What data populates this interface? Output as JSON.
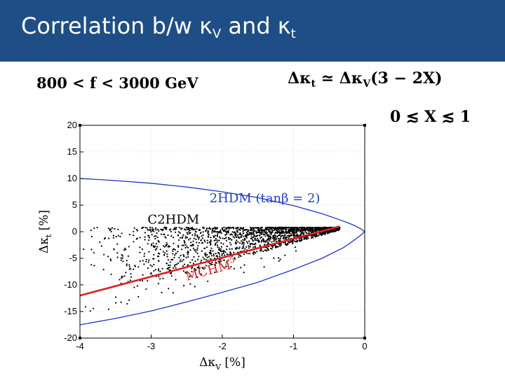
{
  "slide": {
    "title_main": "Correlation b/w κ",
    "title_sub_v": "V",
    "title_and": " and κ",
    "title_sub_t": "t"
  },
  "equations": {
    "range": "800 < f < 3000 GeV",
    "relation_lhs": "Δκ",
    "relation_lhs_sub": "t",
    "relation_mid": " ≃ Δκ",
    "relation_mid_sub": "V",
    "relation_rhs": "(3 − 2X)",
    "x_range": "0 ≲ X ≲ 1"
  },
  "chart_data": {
    "type": "scatter",
    "xlabel": "Δκ",
    "xlabel_sub": "V",
    "xlabel_unit": " [%]",
    "ylabel": "Δκ",
    "ylabel_sub": "t",
    "ylabel_unit": " [%]",
    "xlim": [
      -4,
      0
    ],
    "ylim": [
      -20,
      20
    ],
    "xticks": [
      -4,
      -3,
      -2,
      -1,
      0
    ],
    "yticks": [
      20,
      15,
      10,
      5,
      0,
      -5,
      -10,
      -15,
      -20
    ],
    "grid": true,
    "annotations": [
      {
        "text": "2HDM (tanβ = 2)",
        "color": "#1f3fbf",
        "x": -2.18,
        "y": 5.5
      },
      {
        "text": "C2HDM",
        "color": "#000000",
        "x": -3.05,
        "y": 1.5
      },
      {
        "text": "MCHM",
        "sub": "5",
        "color": "#d42020",
        "x": -2.5,
        "y": -9.2,
        "rotate": -15
      }
    ],
    "series": [
      {
        "kind": "envelope",
        "color": "#2233cc",
        "x": [
          -4.0,
          -3.5,
          -3.0,
          -2.5,
          -2.0,
          -1.5,
          -1.0,
          -0.6,
          -0.3,
          -0.15,
          -0.05,
          0.0
        ],
        "upper": [
          10.0,
          9.6,
          9.1,
          8.4,
          7.5,
          6.4,
          4.9,
          3.4,
          2.0,
          1.2,
          0.5,
          0.0
        ],
        "lower": [
          -17.5,
          -16.3,
          -14.9,
          -13.2,
          -11.4,
          -9.5,
          -7.1,
          -5.0,
          -3.0,
          -1.6,
          -0.6,
          0.0
        ]
      },
      {
        "kind": "line",
        "color": "#dd2222",
        "x": [
          -4.0,
          -0.35
        ],
        "y": [
          -12.0,
          1.0
        ]
      },
      {
        "kind": "scatter",
        "color": "#000000",
        "x_range": [
          -4.0,
          -0.35
        ],
        "y_upper": 0.8,
        "lower_at_x_min": -13.5,
        "lower_at_x_max": 0.3,
        "count": 1800,
        "density": "increasing toward Δκ_V = 0"
      }
    ]
  }
}
